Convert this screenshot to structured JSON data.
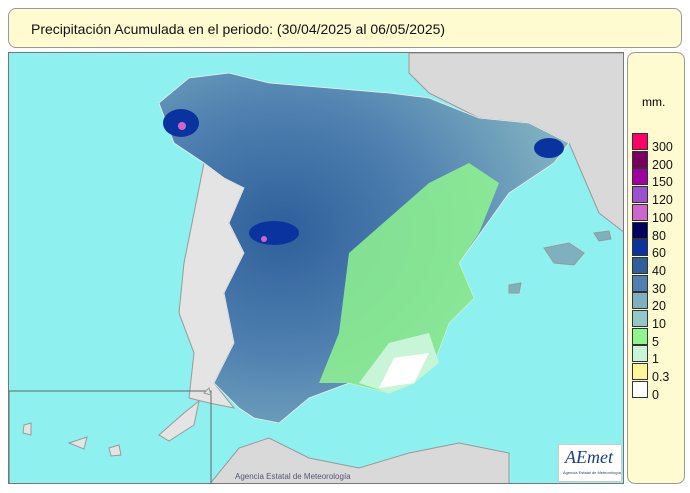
{
  "title": "Precipitación Acumulada en el periodo:  (30/04/2025 al 06/05/2025)",
  "legend": {
    "unit": "mm.",
    "items": [
      {
        "label": "300",
        "color": "#ff0066"
      },
      {
        "label": "200",
        "color": "#7a0060"
      },
      {
        "label": "150",
        "color": "#a000a0"
      },
      {
        "label": "120",
        "color": "#9a50d0"
      },
      {
        "label": "100",
        "color": "#cc66cc"
      },
      {
        "label": "80",
        "color": "#00005e"
      },
      {
        "label": "60",
        "color": "#0a33a0"
      },
      {
        "label": "40",
        "color": "#2f5f9a"
      },
      {
        "label": "30",
        "color": "#4f80b0"
      },
      {
        "label": "20",
        "color": "#7fb0c0"
      },
      {
        "label": "10",
        "color": "#92c8c8"
      },
      {
        "label": "5",
        "color": "#8ff58f"
      },
      {
        "label": "1",
        "color": "#c8f5d8"
      },
      {
        "label": "0.3",
        "color": "#fff59a"
      },
      {
        "label": "0",
        "color": "#ffffff"
      }
    ]
  },
  "credit": "Agencia Estatal de Meteorología",
  "logo": {
    "text": "AEmet",
    "subtitle": "Agencia Estatal de Meteorología"
  },
  "colors": {
    "sea": "#8ff0f0",
    "land_other": "#d9d9d9",
    "panel": "#fffbd0"
  }
}
